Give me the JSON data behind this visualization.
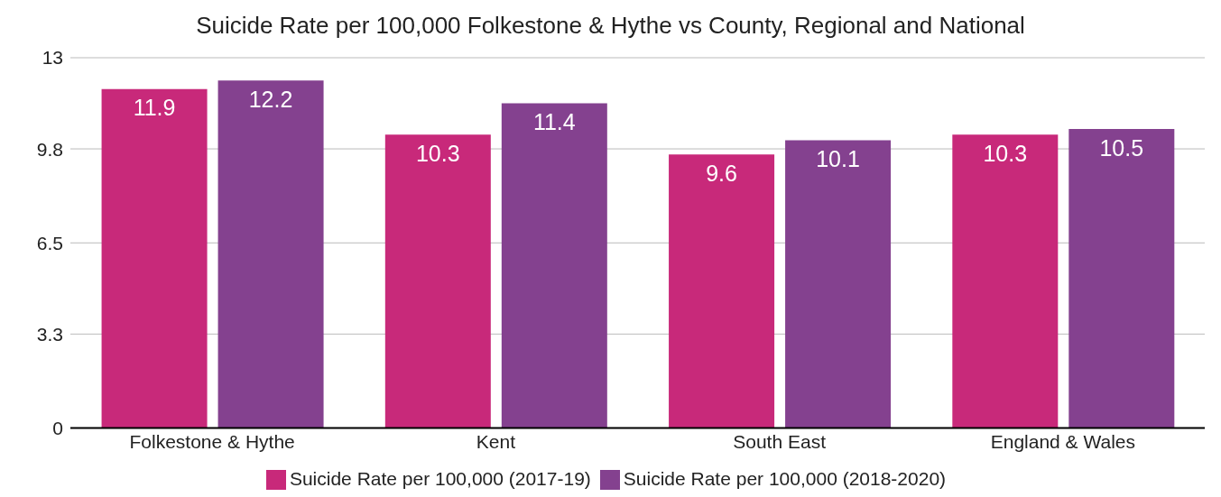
{
  "chart_data": {
    "type": "bar",
    "title": "Suicide Rate per 100,000 Folkestone & Hythe vs County, Regional and National",
    "categories": [
      "Folkestone & Hythe",
      "Kent",
      "South East",
      "England & Wales"
    ],
    "series": [
      {
        "name": "Suicide Rate per 100,000 (2017-19)",
        "color": "#c8297a",
        "values": [
          11.9,
          10.3,
          9.6,
          10.3
        ]
      },
      {
        "name": "Suicide Rate per 100,000 (2018-2020)",
        "color": "#84418f",
        "values": [
          12.2,
          11.4,
          10.1,
          10.5
        ]
      }
    ],
    "ylim": [
      0,
      13
    ],
    "yticks": [
      0,
      3.3,
      6.5,
      9.8,
      13
    ],
    "grid": "y",
    "legend": "bottom",
    "data_labels": true
  }
}
